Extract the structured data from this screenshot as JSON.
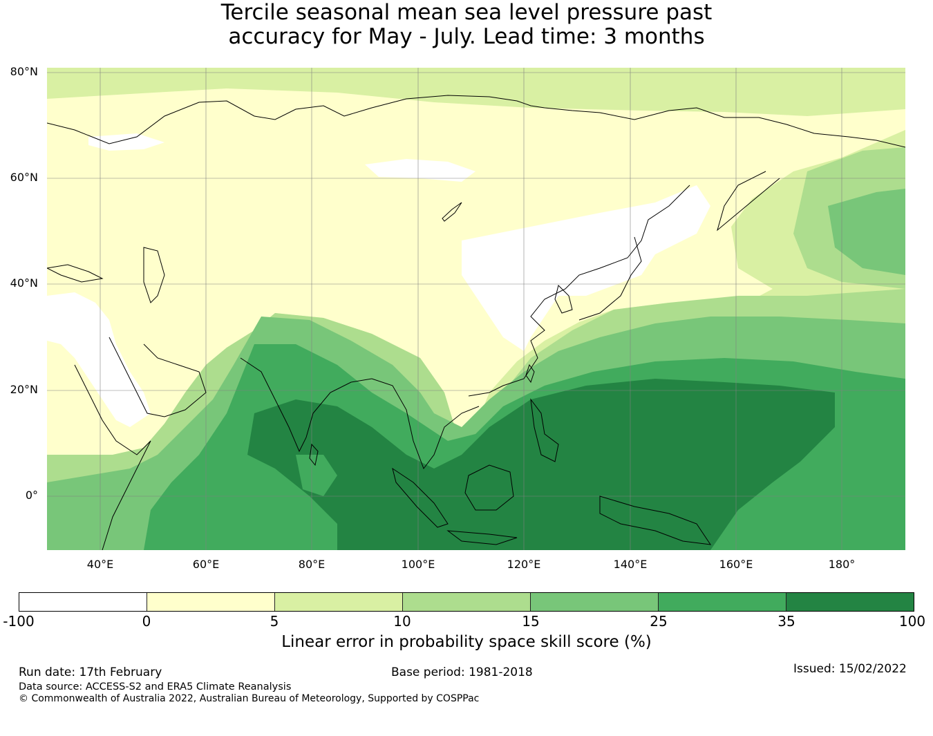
{
  "title": {
    "line1": "Tercile seasonal mean sea level pressure past",
    "line2": "accuracy for May - July. Lead time: 3 months"
  },
  "map": {
    "lat_labels": [
      "80°N",
      "60°N",
      "40°N",
      "20°N",
      "0°"
    ],
    "lon_labels": [
      "40°E",
      "60°E",
      "80°E",
      "100°E",
      "120°E",
      "140°E",
      "160°E",
      "180°"
    ],
    "lon_range": [
      30,
      192
    ],
    "lat_range": [
      -10,
      81
    ],
    "coastline_color": "#000000",
    "gridline_color": "#808080"
  },
  "colorbar": {
    "label": "Linear error in probability space skill score (%)",
    "ticks": [
      "-100",
      "0",
      "5",
      "10",
      "15",
      "25",
      "35",
      "100"
    ],
    "bins": [
      {
        "from": -100,
        "to": 0,
        "color": "#ffffff"
      },
      {
        "from": 0,
        "to": 5,
        "color": "#ffffcc"
      },
      {
        "from": 5,
        "to": 10,
        "color": "#d9f0a3"
      },
      {
        "from": 10,
        "to": 15,
        "color": "#addd8e"
      },
      {
        "from": 15,
        "to": 25,
        "color": "#78c679"
      },
      {
        "from": 25,
        "to": 35,
        "color": "#41ab5d"
      },
      {
        "from": 35,
        "to": 100,
        "color": "#238443"
      }
    ]
  },
  "footer": {
    "run_date": "Run date: 17th February",
    "base_period": "Base period: 1981-2018",
    "issued": "Issued: 15/02/2022",
    "data_source": "Data source: ACCESS-S2 and ERA5 Climate Reanalysis",
    "copyright": "© Commonwealth of Australia 2022, Australian Bureau of Meteorology, Supported by COSPPac"
  }
}
